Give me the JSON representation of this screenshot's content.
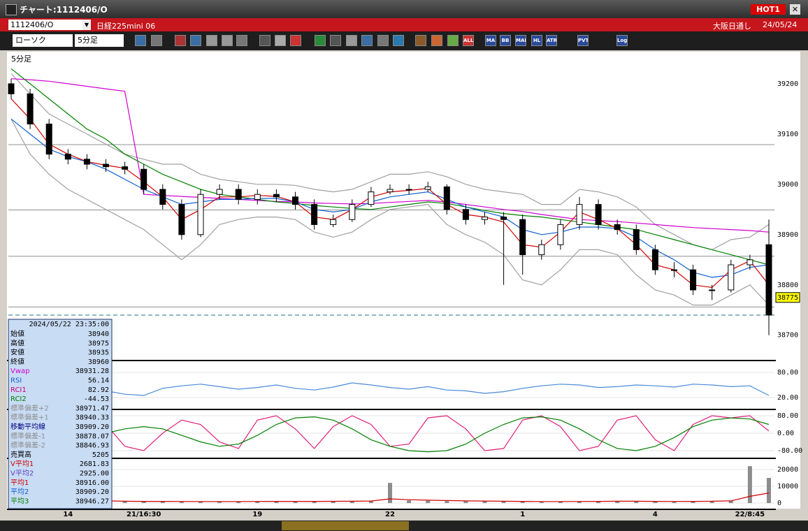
{
  "window": {
    "title": "チャート:1112406/O",
    "badge": "HOT1"
  },
  "header": {
    "code": "1112406/O",
    "name": "日経225mini 06",
    "market": "大阪日通し",
    "date": "24/05/24"
  },
  "toolbar": {
    "chart_type": "ローソク",
    "interval": "5分足",
    "buttons": [
      "ALL",
      "MA",
      "BB",
      "MAE",
      "HL",
      "ATR",
      "PVT",
      "Log"
    ]
  },
  "info": {
    "datetime": "2024/05/22 23:35:00",
    "rows": [
      {
        "label": "始値",
        "value": "38940",
        "color": "#000000"
      },
      {
        "label": "高値",
        "value": "38975",
        "color": "#000000"
      },
      {
        "label": "安値",
        "value": "38935",
        "color": "#000000"
      },
      {
        "label": "終値",
        "value": "38960",
        "color": "#000000"
      },
      {
        "label": "Vwap",
        "value": "38931.28",
        "color": "#d000d0"
      },
      {
        "label": "RSI",
        "value": "56.14",
        "color": "#1060d0"
      },
      {
        "label": "RCI1",
        "value": "82.92",
        "color": "#d0007a"
      },
      {
        "label": "RCI2",
        "value": "-44.53",
        "color": "#008000"
      },
      {
        "label": "標準偏差+2",
        "value": "38971.47",
        "color": "#909090"
      },
      {
        "label": "標準偏差+1",
        "value": "38940.33",
        "color": "#909090"
      },
      {
        "label": "移動平均線",
        "value": "38909.20",
        "color": "#000080"
      },
      {
        "label": "標準偏差-1",
        "value": "38878.07",
        "color": "#909090"
      },
      {
        "label": "標準偏差-2",
        "value": "38846.93",
        "color": "#909090"
      },
      {
        "label": "売買高",
        "value": "5205",
        "color": "#000000"
      },
      {
        "label": "V平均1",
        "value": "2681.83",
        "color": "#d00000"
      },
      {
        "label": "V平均2",
        "value": "2925.00",
        "color": "#6040c0"
      },
      {
        "label": "平均1",
        "value": "38916.00",
        "color": "#d00000"
      },
      {
        "label": "平均2",
        "value": "38909.20",
        "color": "#1060d0"
      },
      {
        "label": "平均3",
        "value": "38946.27",
        "color": "#008000"
      }
    ]
  },
  "chart_data": [
    {
      "type": "candlestick",
      "title": "5分足",
      "categories": [
        null,
        null,
        null,
        "14",
        null,
        null,
        null,
        "21/16:30",
        null,
        null,
        null,
        null,
        null,
        "19",
        null,
        null,
        null,
        null,
        null,
        null,
        "22",
        null,
        null,
        null,
        null,
        null,
        null,
        "1",
        null,
        null,
        null,
        null,
        null,
        null,
        "4",
        null,
        null,
        null,
        null,
        "22/8:45",
        null
      ],
      "open": [
        39200,
        39180,
        39120,
        39060,
        39050,
        39040,
        39035,
        39030,
        38990,
        38960,
        38900,
        38980,
        38990,
        38970,
        38980,
        38975,
        38960,
        38920,
        38930,
        38960,
        38985,
        38990,
        38990,
        38995,
        38950,
        38930,
        38935,
        38930,
        38860,
        38880,
        38920,
        38960,
        38920,
        38910,
        38870,
        38830,
        38830,
        38790,
        38790,
        38840,
        38880
      ],
      "high": [
        39210,
        39190,
        39130,
        39070,
        39060,
        39050,
        39045,
        39040,
        39000,
        38970,
        38990,
        39000,
        39000,
        38990,
        38990,
        38985,
        38970,
        38940,
        38970,
        38995,
        39000,
        39000,
        39005,
        39000,
        38960,
        38945,
        38945,
        38940,
        38890,
        38930,
        38975,
        38970,
        38930,
        38920,
        38880,
        38845,
        38840,
        38800,
        38850,
        38860,
        38930
      ],
      "low": [
        39170,
        39110,
        39050,
        39040,
        39030,
        39025,
        39020,
        38980,
        38950,
        38890,
        38895,
        38970,
        38960,
        38960,
        38965,
        38950,
        38910,
        38915,
        38925,
        38955,
        38980,
        38980,
        38985,
        38940,
        38920,
        38920,
        38800,
        38820,
        38850,
        38870,
        38910,
        38910,
        38900,
        38860,
        38820,
        38815,
        38780,
        38770,
        38785,
        38830,
        38700
      ],
      "close": [
        39180,
        39120,
        39060,
        39050,
        39040,
        39035,
        39030,
        38990,
        38960,
        38900,
        38980,
        38990,
        38970,
        38980,
        38975,
        38960,
        38920,
        38930,
        38960,
        38985,
        38990,
        38990,
        38995,
        38950,
        38930,
        38935,
        38930,
        38860,
        38880,
        38920,
        38960,
        38920,
        38910,
        38870,
        38830,
        38830,
        38790,
        38790,
        38840,
        38850,
        38740
      ],
      "series": [
        {
          "color": "#a0a0a0",
          "values": [
            39220,
            39180,
            39140,
            39120,
            39100,
            39080,
            39060,
            39050,
            39040,
            39040,
            39020,
            39010,
            39005,
            39000,
            39000,
            38998,
            38990,
            38985,
            38990,
            39005,
            39020,
            39020,
            39025,
            39015,
            39000,
            38990,
            38985,
            38980,
            38960,
            38960,
            38990,
            38985,
            38975,
            38955,
            38920,
            38900,
            38880,
            38870,
            38890,
            38895,
            38920
          ]
        },
        {
          "color": "#a0a0a0",
          "values": [
            39130,
            39060,
            39020,
            38990,
            38970,
            38950,
            38930,
            38910,
            38880,
            38850,
            38880,
            38920,
            38930,
            38935,
            38935,
            38930,
            38905,
            38895,
            38905,
            38930,
            38950,
            38955,
            38960,
            38920,
            38900,
            38885,
            38860,
            38810,
            38800,
            38830,
            38870,
            38870,
            38860,
            38820,
            38790,
            38780,
            38760,
            38760,
            38780,
            38800,
            38760
          ]
        },
        {
          "color": "#d000d0",
          "values": [
            39210,
            39208,
            39205,
            39200,
            39195,
            39190,
            39185,
            38980,
            38978,
            38976,
            38974,
            38972,
            38970,
            38968,
            38966,
            38965,
            38963,
            38962,
            38961,
            38962,
            38964,
            38966,
            38968,
            38965,
            38960,
            38955,
            38950,
            38946,
            38940,
            38935,
            38930,
            38928,
            38926,
            38923,
            38920,
            38917,
            38914,
            38912,
            38910,
            38908,
            38905
          ]
        },
        {
          "color": "#008000",
          "values": [
            39230,
            39200,
            39170,
            39140,
            39110,
            39090,
            39060,
            39040,
            39020,
            39005,
            38990,
            38980,
            38975,
            38970,
            38965,
            38962,
            38958,
            38955,
            38952,
            38950,
            38955,
            38960,
            38965,
            38962,
            38955,
            38948,
            38942,
            38938,
            38935,
            38930,
            38925,
            38920,
            38915,
            38910,
            38900,
            38890,
            38880,
            38870,
            38860,
            38850,
            38840
          ]
        },
        {
          "color": "#1060d0",
          "values": [
            39130,
            39100,
            39070,
            39055,
            39045,
            39030,
            39010,
            38990,
            38975,
            38960,
            38965,
            38970,
            38970,
            38972,
            38972,
            38965,
            38950,
            38945,
            38950,
            38965,
            38975,
            38980,
            38985,
            38970,
            38955,
            38945,
            38935,
            38910,
            38900,
            38905,
            38915,
            38915,
            38912,
            38895,
            38870,
            38850,
            38825,
            38815,
            38820,
            38835,
            38840
          ]
        },
        {
          "color": "#d00000",
          "values": [
            39170,
            39130,
            39080,
            39060,
            39045,
            39038,
            39032,
            39005,
            38975,
            38930,
            38950,
            38975,
            38975,
            38978,
            38976,
            38965,
            38935,
            38930,
            38950,
            38975,
            38985,
            38988,
            38992,
            38960,
            38940,
            38935,
            38925,
            38880,
            38875,
            38905,
            38945,
            38930,
            38912,
            38880,
            38840,
            38830,
            38800,
            38795,
            38830,
            38848,
            38800
          ]
        }
      ],
      "levels": [
        {
          "value": 39079,
          "color": "#909090",
          "dashed": false
        },
        {
          "value": 38949,
          "color": "#909090",
          "dashed": false
        },
        {
          "value": 38857,
          "color": "#909090",
          "dashed": false
        },
        {
          "value": 38756,
          "color": "#909090",
          "dashed": false
        },
        {
          "value": 38740,
          "color": "#207080",
          "dashed": true
        }
      ],
      "last_price": 38775,
      "ylim": [
        38651,
        39261
      ],
      "yticks": [
        39200,
        39100,
        39000,
        38900,
        38800,
        38700
      ]
    },
    {
      "type": "line",
      "series": [
        {
          "color": "#4a8ad8",
          "values": [
            35,
            30,
            32,
            38,
            40,
            36,
            28,
            25,
            42,
            48,
            52,
            46,
            40,
            44,
            50,
            42,
            38,
            45,
            55,
            50,
            44,
            40,
            46,
            38,
            36,
            30,
            34,
            42,
            48,
            52,
            50,
            44,
            46,
            50,
            48,
            45,
            52,
            50,
            46,
            48,
            25
          ]
        }
      ],
      "ylim": [
        -6.7,
        106.7
      ],
      "yticks": [
        {
          "value": 80,
          "label": "80.00"
        },
        {
          "value": 20,
          "label": "20.00"
        }
      ]
    },
    {
      "type": "line",
      "series": [
        {
          "color": "#e0207a",
          "values": [
            -70,
            -60,
            20,
            70,
            80,
            40,
            -60,
            -80,
            0,
            60,
            40,
            -40,
            -70,
            60,
            80,
            20,
            -70,
            30,
            80,
            40,
            -60,
            -50,
            70,
            80,
            20,
            -80,
            -70,
            60,
            80,
            30,
            -80,
            -60,
            60,
            80,
            -30,
            -80,
            40,
            80,
            70,
            80,
            10
          ]
        },
        {
          "color": "#008000",
          "values": [
            -80,
            -80,
            -75,
            -60,
            -30,
            0,
            20,
            30,
            20,
            -10,
            -40,
            -60,
            -50,
            -10,
            40,
            70,
            75,
            60,
            20,
            -30,
            -60,
            -80,
            -85,
            -80,
            -50,
            0,
            40,
            70,
            75,
            60,
            20,
            -30,
            -70,
            -80,
            -60,
            -20,
            30,
            60,
            70,
            65,
            40
          ]
        }
      ],
      "ylim": [
        -112,
        105.6
      ],
      "yticks": [
        {
          "value": 80,
          "label": "80.00"
        },
        {
          "value": 0,
          "label": "0.00"
        },
        {
          "value": -80,
          "label": "-80.00"
        }
      ]
    },
    {
      "type": "bar",
      "color": "#8c8c8c",
      "values": [
        4000,
        3500,
        2000,
        1500,
        1200,
        1000,
        800,
        900,
        1100,
        800,
        700,
        800,
        900,
        1000,
        1200,
        900,
        1000,
        1100,
        1300,
        1500,
        12000,
        1600,
        1400,
        1200,
        1000,
        1100,
        900,
        800,
        700,
        900,
        1000,
        1200,
        1300,
        1100,
        900,
        800,
        1000,
        1200,
        1500,
        22000,
        15000
      ],
      "series": [
        {
          "color": "#d00000",
          "values": [
            3500,
            3200,
            2500,
            2000,
            1600,
            1300,
            1100,
            1000,
            1000,
            950,
            900,
            900,
            900,
            950,
            1000,
            1000,
            1000,
            1050,
            1100,
            1200,
            2500,
            2000,
            1700,
            1500,
            1300,
            1200,
            1100,
            1000,
            900,
            900,
            950,
            1000,
            1100,
            1100,
            1000,
            950,
            1000,
            1100,
            1300,
            4000,
            6000
          ]
        }
      ],
      "ylim": [
        -3333,
        26250
      ],
      "yticks": [
        20000,
        10000,
        0
      ]
    }
  ]
}
